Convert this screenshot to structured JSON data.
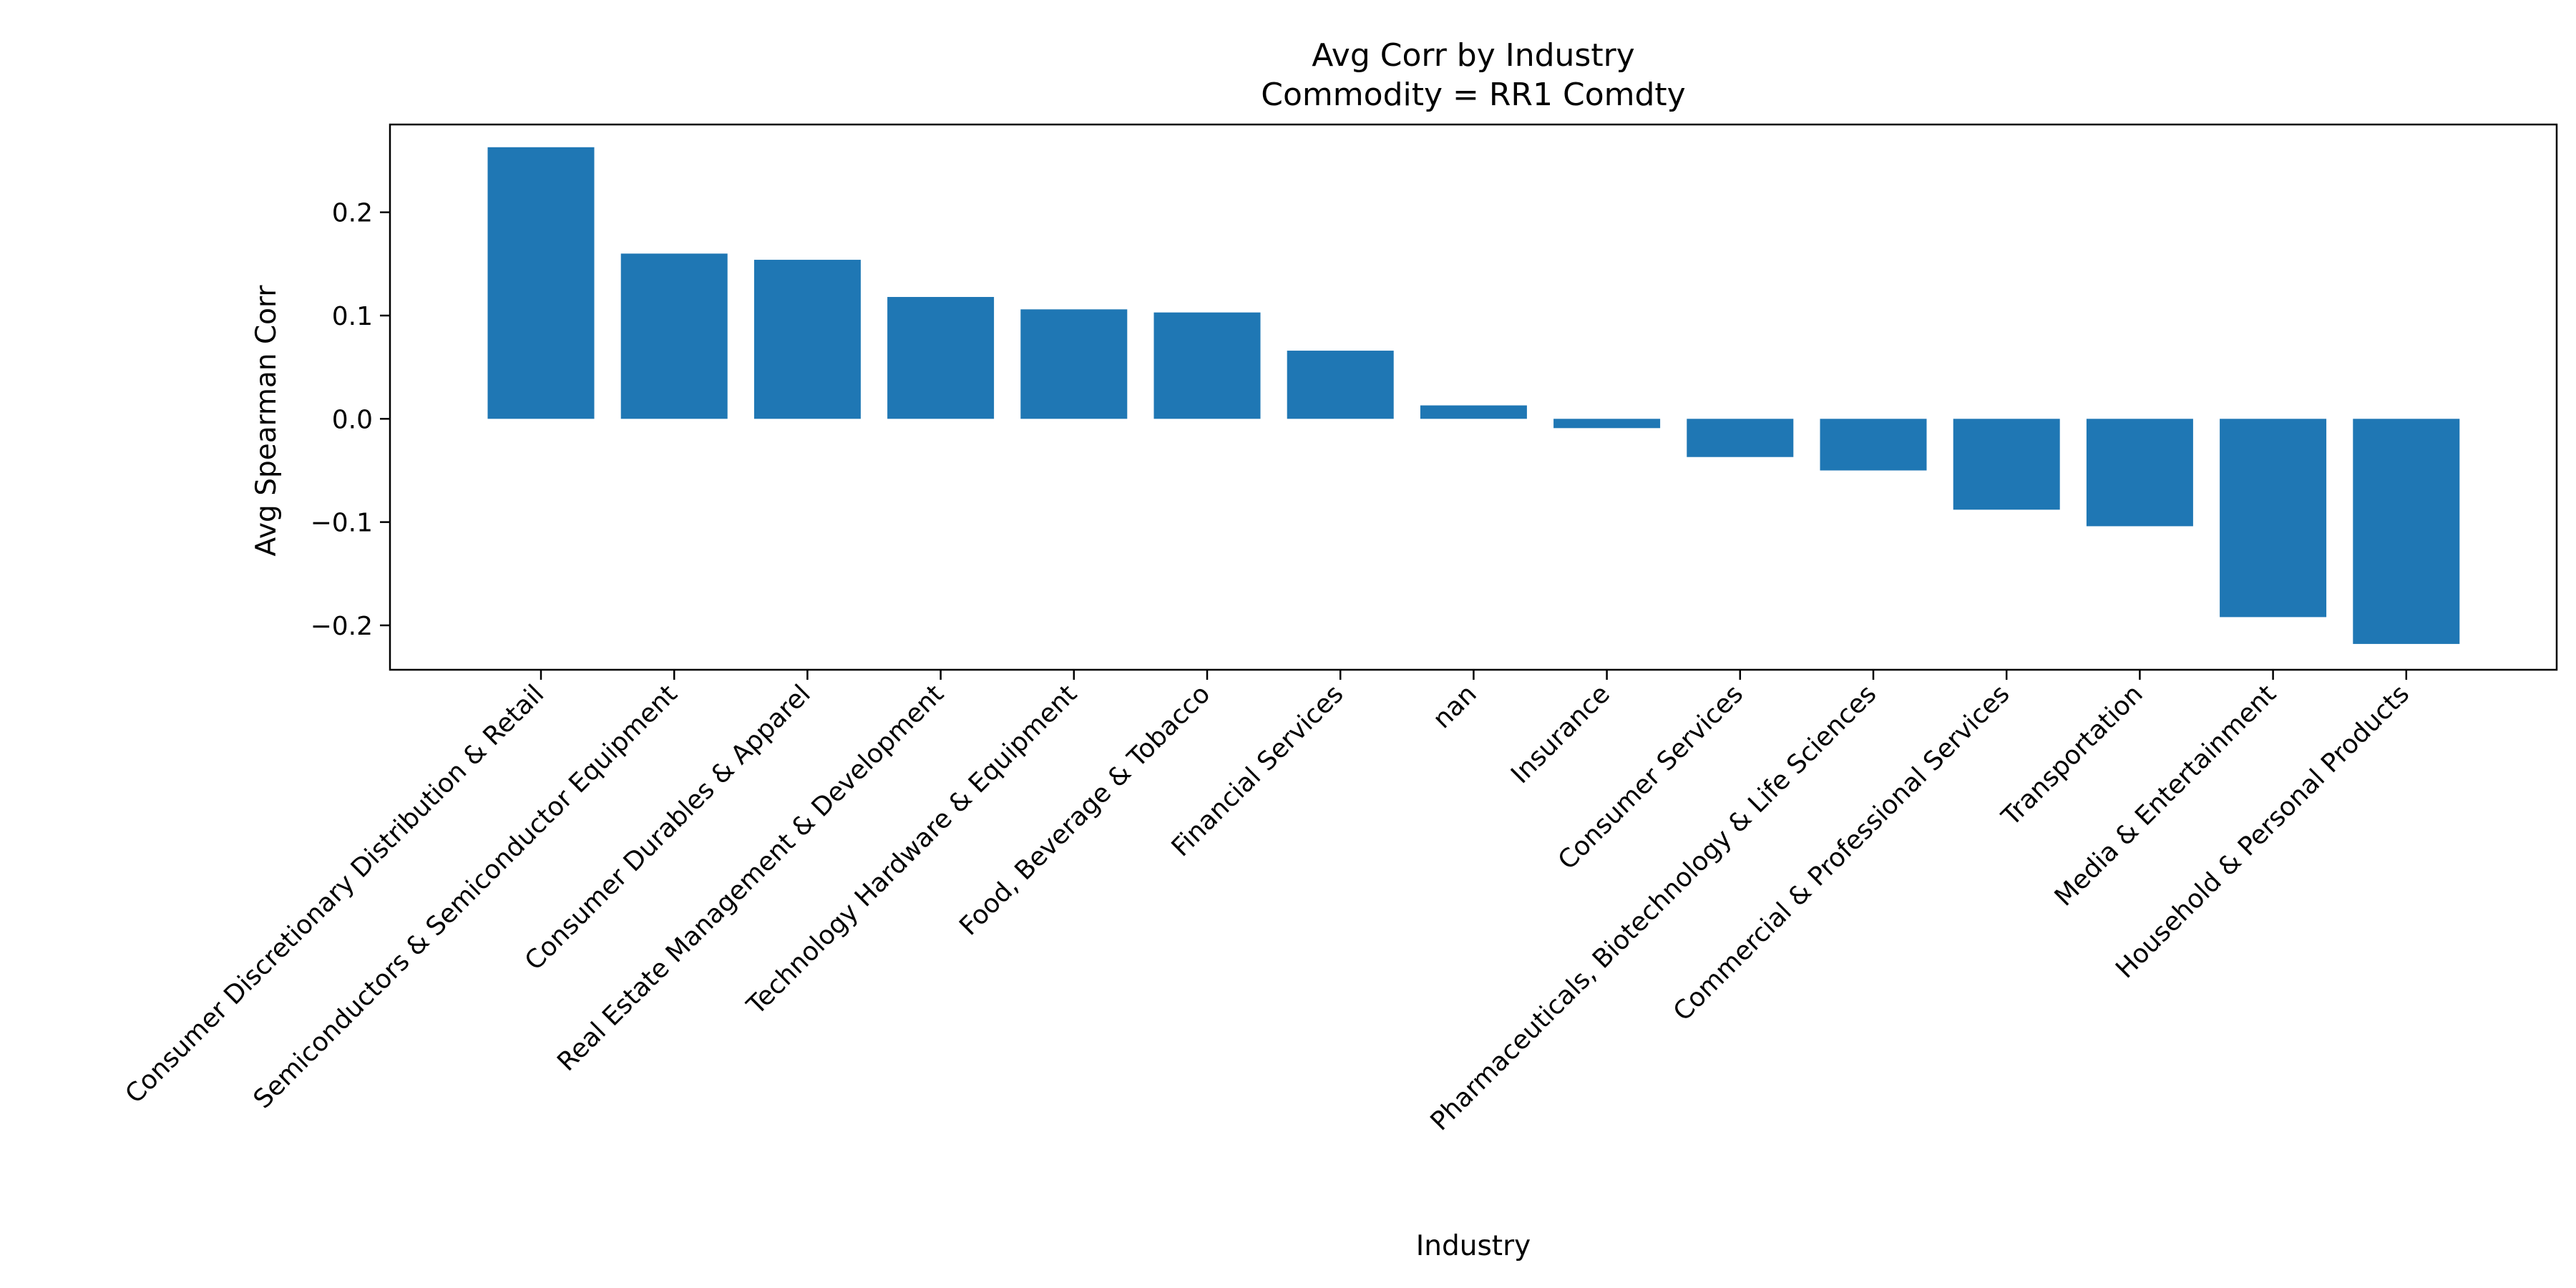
{
  "chart_data": {
    "type": "bar",
    "title": "Avg Corr by Industry",
    "subtitle": "Commodity = RR1 Comdty",
    "xlabel": "Industry",
    "ylabel": "Avg Spearman Corr",
    "ylim": [
      -0.243,
      0.285
    ],
    "yticks": [
      0.2,
      0.1,
      0.0,
      -0.1,
      -0.2
    ],
    "ytick_labels": [
      "0.2",
      "0.1",
      "0.0",
      "−0.1",
      "−0.2"
    ],
    "grid": false,
    "bar_color": "#1f77b4",
    "categories": [
      "Consumer Discretionary Distribution & Retail",
      "Semiconductors & Semiconductor Equipment",
      "Consumer Durables & Apparel",
      "Real Estate Management & Development",
      "Technology Hardware & Equipment",
      "Food, Beverage & Tobacco",
      "Financial Services",
      "nan",
      "Insurance",
      "Consumer Services",
      "Pharmaceuticals, Biotechnology & Life Sciences",
      "Commercial & Professional Services",
      "Transportation",
      "Media & Entertainment",
      "Household & Personal Products"
    ],
    "values": [
      0.263,
      0.16,
      0.154,
      0.118,
      0.106,
      0.103,
      0.066,
      0.013,
      -0.009,
      -0.037,
      -0.05,
      -0.088,
      -0.104,
      -0.192,
      -0.218
    ]
  }
}
